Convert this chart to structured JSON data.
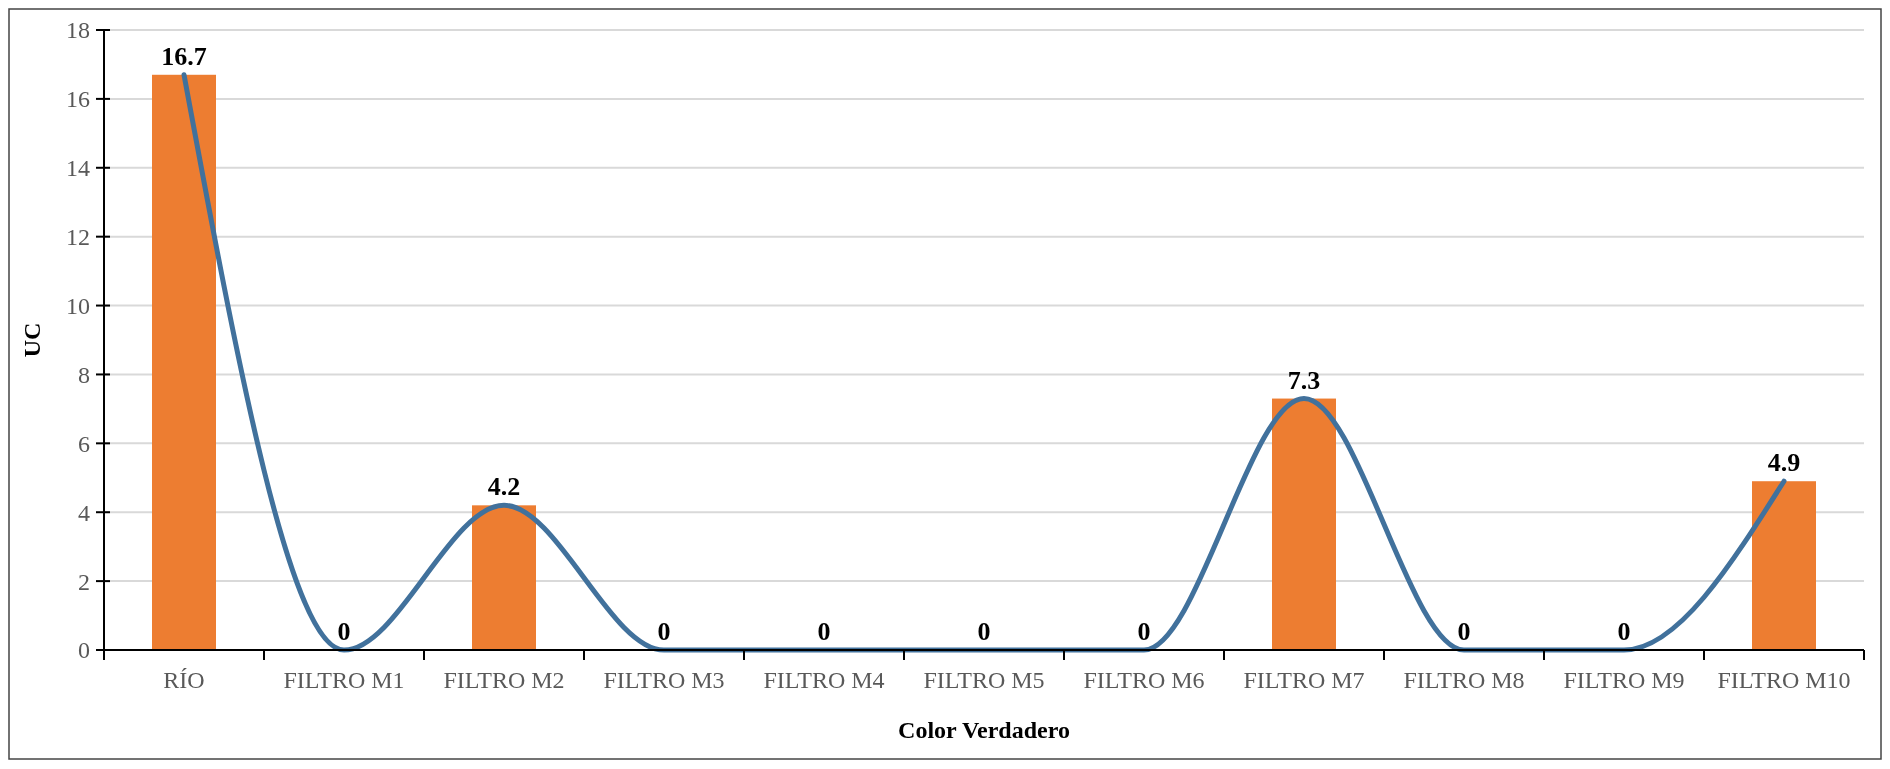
{
  "chart_data": {
    "type": "bar",
    "xlabel": "Color Verdadero",
    "ylabel": "UC",
    "categories": [
      "RÍO",
      "FILTRO M1",
      "FILTRO M2",
      "FILTRO M3",
      "FILTRO M4",
      "FILTRO M5",
      "FILTRO M6",
      "FILTRO M7",
      "FILTRO M8",
      "FILTRO M9",
      "FILTRO M10"
    ],
    "series": [
      {
        "color": "#ed7d31",
        "values": [
          16.7,
          0,
          4.2,
          0,
          0,
          0,
          0,
          7.3,
          0,
          0,
          4.9
        ],
        "value_labels": [
          "16.7",
          "0",
          "4.2",
          "0",
          "0",
          "0",
          "0",
          "7.3",
          "0",
          "0",
          "4.9"
        ]
      },
      {
        "type": "line",
        "color": "#41719c",
        "values": [
          16.7,
          0,
          4.2,
          0,
          0,
          0,
          0,
          7.3,
          0,
          0,
          4.9
        ]
      }
    ],
    "ylim": [
      0,
      18
    ],
    "yticks": [
      0,
      2,
      4,
      6,
      8,
      10,
      12,
      14,
      16,
      18
    ],
    "grid": "y"
  }
}
